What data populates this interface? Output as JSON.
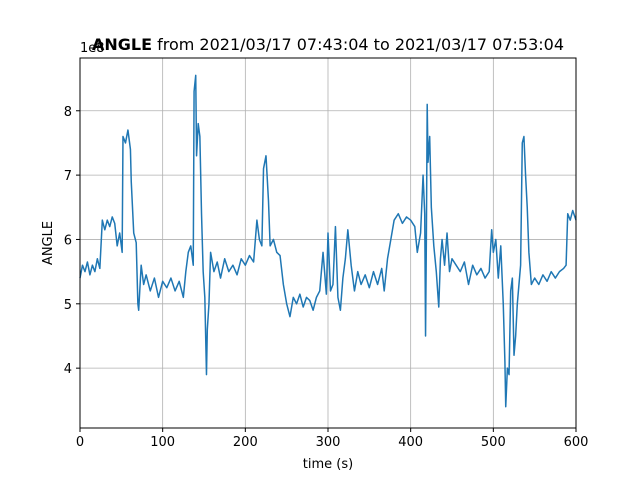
{
  "chart_data": {
    "type": "line",
    "title_prefix": "ANGLE",
    "title": "from 2021/03/17 07:43:04 to 2021/03/17 07:53:04",
    "y_offset_text": "1e8",
    "xlabel": "time (s)",
    "ylabel": "ANGLE",
    "xlim": [
      0,
      600
    ],
    "ylim": [
      3.07,
      8.82
    ],
    "xticks": [
      0,
      100,
      200,
      300,
      400,
      500,
      600
    ],
    "yticks": [
      4,
      5,
      6,
      7,
      8
    ],
    "grid": true,
    "x": [
      0,
      3,
      6,
      9,
      12,
      15,
      18,
      21,
      24,
      27,
      30,
      33,
      36,
      39,
      42,
      45,
      48,
      51,
      52,
      55,
      58,
      61,
      62,
      65,
      68,
      70,
      71,
      74,
      77,
      80,
      85,
      90,
      95,
      100,
      105,
      110,
      115,
      120,
      125,
      128,
      131,
      134,
      137,
      138,
      140,
      141,
      143,
      145,
      147,
      149,
      151,
      153,
      154,
      156,
      158,
      162,
      166,
      170,
      175,
      180,
      185,
      190,
      195,
      200,
      205,
      210,
      214,
      217,
      220,
      222,
      225,
      228,
      230,
      234,
      238,
      242,
      246,
      250,
      254,
      258,
      262,
      266,
      270,
      274,
      278,
      282,
      286,
      290,
      294,
      298,
      300,
      303,
      306,
      309,
      312,
      315,
      318,
      321,
      324,
      328,
      332,
      336,
      340,
      345,
      350,
      355,
      360,
      365,
      368,
      372,
      376,
      380,
      385,
      390,
      395,
      400,
      405,
      408,
      412,
      415,
      417,
      418,
      419,
      420,
      421,
      423,
      425,
      428,
      431,
      434,
      436,
      438,
      441,
      444,
      447,
      450,
      455,
      460,
      465,
      470,
      475,
      480,
      485,
      490,
      495,
      498,
      500,
      503,
      506,
      509,
      512,
      514,
      515,
      517,
      519,
      521,
      523,
      525,
      527,
      529,
      531,
      533,
      535,
      537,
      539,
      541,
      543,
      546,
      550,
      555,
      560,
      565,
      570,
      575,
      580,
      585,
      588,
      590,
      593,
      596,
      600
    ],
    "series": [
      {
        "color": "#1f77b4",
        "values": [
          5.4,
          5.6,
          5.5,
          5.65,
          5.45,
          5.6,
          5.5,
          5.7,
          5.55,
          6.3,
          6.15,
          6.3,
          6.2,
          6.35,
          6.25,
          5.9,
          6.1,
          5.8,
          7.6,
          7.5,
          7.7,
          7.4,
          6.9,
          6.1,
          5.95,
          5.0,
          4.9,
          5.6,
          5.3,
          5.45,
          5.2,
          5.4,
          5.1,
          5.35,
          5.25,
          5.4,
          5.2,
          5.35,
          5.1,
          5.5,
          5.8,
          5.9,
          5.6,
          8.3,
          8.55,
          7.3,
          7.8,
          7.6,
          6.4,
          5.5,
          5.1,
          3.9,
          4.6,
          5.0,
          5.8,
          5.5,
          5.65,
          5.4,
          5.7,
          5.5,
          5.6,
          5.45,
          5.7,
          5.6,
          5.75,
          5.65,
          6.3,
          6.0,
          5.9,
          7.1,
          7.3,
          6.6,
          5.9,
          6.0,
          5.8,
          5.75,
          5.3,
          5.0,
          4.8,
          5.1,
          5.0,
          5.15,
          4.95,
          5.1,
          5.05,
          4.9,
          5.1,
          5.2,
          5.8,
          5.15,
          6.1,
          5.2,
          5.3,
          6.2,
          5.1,
          4.9,
          5.4,
          5.7,
          6.15,
          5.6,
          5.2,
          5.5,
          5.3,
          5.45,
          5.25,
          5.5,
          5.3,
          5.55,
          5.2,
          5.7,
          6.0,
          6.3,
          6.4,
          6.25,
          6.35,
          6.3,
          6.2,
          5.8,
          6.1,
          7.0,
          6.4,
          4.5,
          6.0,
          8.1,
          7.2,
          7.6,
          6.5,
          5.9,
          5.5,
          4.95,
          5.7,
          6.0,
          5.6,
          6.1,
          5.5,
          5.7,
          5.6,
          5.5,
          5.65,
          5.3,
          5.6,
          5.45,
          5.55,
          5.4,
          5.5,
          6.15,
          5.8,
          6.0,
          5.4,
          5.9,
          5.0,
          4.1,
          3.4,
          4.0,
          3.9,
          5.2,
          5.4,
          4.2,
          4.5,
          5.0,
          5.3,
          5.6,
          7.5,
          7.6,
          7.0,
          6.5,
          5.8,
          5.3,
          5.4,
          5.3,
          5.45,
          5.35,
          5.5,
          5.4,
          5.5,
          5.55,
          5.6,
          6.4,
          6.3,
          6.45,
          6.3
        ]
      }
    ]
  }
}
